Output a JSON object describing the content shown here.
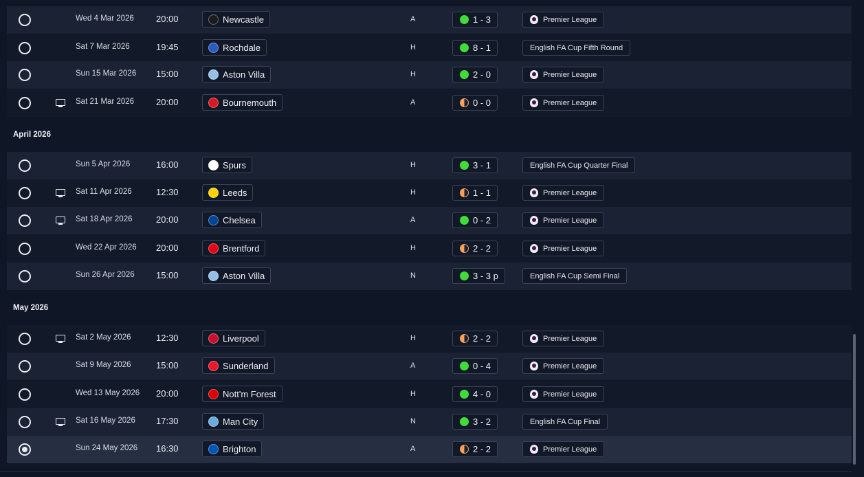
{
  "colors": {
    "win": "#3fdc3a",
    "draw": "#f5a15a",
    "row_even": "#1a2233",
    "row_odd": "#121a2a"
  },
  "sections": [
    {
      "label": "April 2026"
    },
    {
      "label": "May 2026"
    }
  ],
  "fixtures": [
    {
      "date": "Wed 4 Mar 2026",
      "time": "20:00",
      "team": "Newcastle",
      "crest_color": "#1c1c1c",
      "venue": "A",
      "outcome": "win",
      "score": "1 - 3",
      "competition": "Premier League",
      "tv": false,
      "selected": false
    },
    {
      "date": "Sat 7 Mar 2026",
      "time": "19:45",
      "team": "Rochdale",
      "crest_color": "#2a5bbf",
      "venue": "H",
      "outcome": "win",
      "score": "8 - 1",
      "competition": "English FA Cup Fifth Round",
      "tv": false,
      "selected": false
    },
    {
      "date": "Sun 15 Mar 2026",
      "time": "15:00",
      "team": "Aston Villa",
      "crest_color": "#95bfe5",
      "venue": "H",
      "outcome": "win",
      "score": "2 - 0",
      "competition": "Premier League",
      "tv": false,
      "selected": false
    },
    {
      "date": "Sat 21 Mar 2026",
      "time": "20:00",
      "team": "Bournemouth",
      "crest_color": "#d71920",
      "venue": "A",
      "outcome": "draw",
      "score": "0 - 0",
      "competition": "Premier League",
      "tv": true,
      "selected": false
    },
    {
      "date": "Sun 5 Apr 2026",
      "time": "16:00",
      "team": "Spurs",
      "crest_color": "#ffffff",
      "venue": "H",
      "outcome": "win",
      "score": "3 - 1",
      "competition": "English FA Cup Quarter Final",
      "tv": false,
      "selected": false
    },
    {
      "date": "Sat 11 Apr 2026",
      "time": "12:30",
      "team": "Leeds",
      "crest_color": "#ffd200",
      "venue": "H",
      "outcome": "draw",
      "score": "1 - 1",
      "competition": "Premier League",
      "tv": true,
      "selected": false
    },
    {
      "date": "Sat 18 Apr 2026",
      "time": "20:00",
      "team": "Chelsea",
      "crest_color": "#034694",
      "venue": "A",
      "outcome": "win",
      "score": "0 - 2",
      "competition": "Premier League",
      "tv": true,
      "selected": false
    },
    {
      "date": "Wed 22 Apr 2026",
      "time": "20:00",
      "team": "Brentford",
      "crest_color": "#e30613",
      "venue": "H",
      "outcome": "draw",
      "score": "2 - 2",
      "competition": "Premier League",
      "tv": false,
      "selected": false
    },
    {
      "date": "Sun 26 Apr 2026",
      "time": "15:00",
      "team": "Aston Villa",
      "crest_color": "#95bfe5",
      "venue": "N",
      "outcome": "win",
      "score": "3 - 3 p",
      "competition": "English FA Cup Semi Final",
      "tv": false,
      "selected": false
    },
    {
      "date": "Sat 2 May 2026",
      "time": "12:30",
      "team": "Liverpool",
      "crest_color": "#c8102e",
      "venue": "H",
      "outcome": "draw",
      "score": "2 - 2",
      "competition": "Premier League",
      "tv": true,
      "selected": false
    },
    {
      "date": "Sat 9 May 2026",
      "time": "15:00",
      "team": "Sunderland",
      "crest_color": "#eb172b",
      "venue": "A",
      "outcome": "win",
      "score": "0 - 4",
      "competition": "Premier League",
      "tv": false,
      "selected": false
    },
    {
      "date": "Wed 13 May 2026",
      "time": "20:00",
      "team": "Nott'm Forest",
      "crest_color": "#dd0000",
      "venue": "H",
      "outcome": "win",
      "score": "4 - 0",
      "competition": "Premier League",
      "tv": false,
      "selected": false
    },
    {
      "date": "Sat 16 May 2026",
      "time": "17:30",
      "team": "Man City",
      "crest_color": "#6cabdd",
      "venue": "N",
      "outcome": "win",
      "score": "3 - 2",
      "competition": "English FA Cup Final",
      "tv": true,
      "selected": false
    },
    {
      "date": "Sun 24 May 2026",
      "time": "16:30",
      "team": "Brighton",
      "crest_color": "#0057b8",
      "venue": "A",
      "outcome": "draw",
      "score": "2 - 2",
      "competition": "Premier League",
      "tv": false,
      "selected": true
    }
  ]
}
